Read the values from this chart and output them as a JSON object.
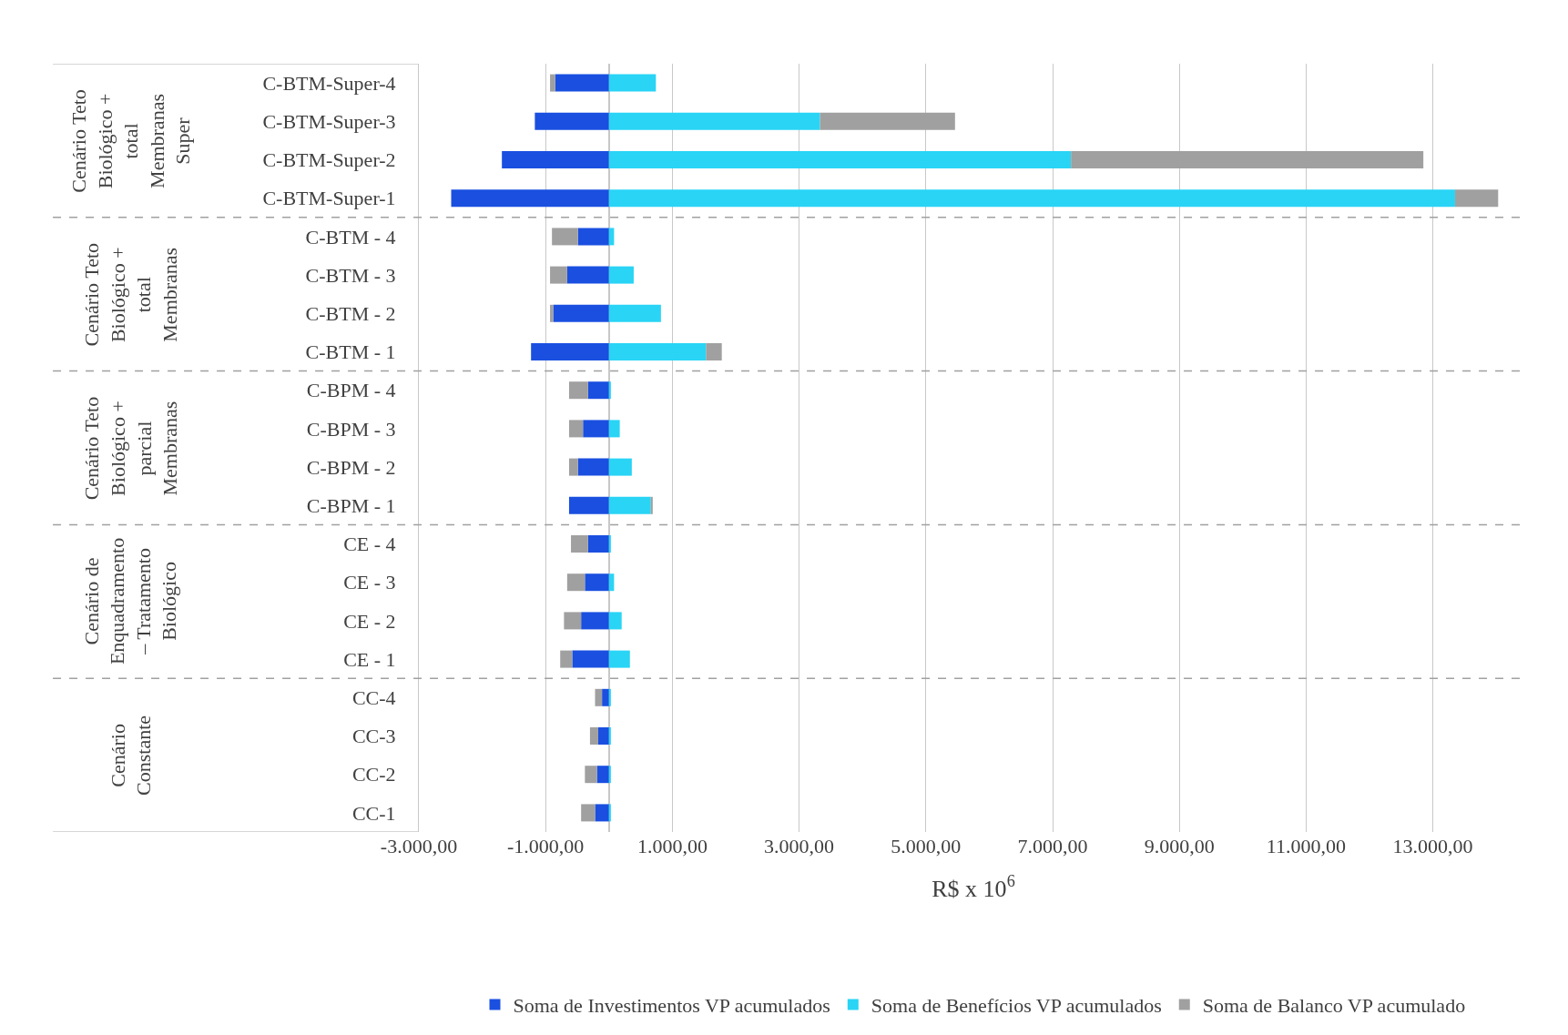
{
  "chart_data": {
    "type": "bar",
    "orientation": "horizontal",
    "stacked": true,
    "xlabel": "R$ x 10$^{6}$",
    "categories": [
      "C-BTM-Super-4",
      "C-BTM-Super-3",
      "C-BTM-Super-2",
      "C-BTM-Super-1",
      "C-BTM - 4",
      "C-BTM - 3",
      "C-BTM - 2",
      "C-BTM - 1",
      "C-BPM - 4",
      "C-BPM - 3",
      "C-BPM - 2",
      "C-BPM - 1",
      "CE - 4",
      "CE - 3",
      "CE - 2",
      "CE - 1",
      "CC-4",
      "CC-3",
      "CC-2",
      "CC-1"
    ],
    "series": [
      {
        "name": "Soma de Investimentos VP acumulados",
        "color": "#1a4fe0",
        "values": [
          -850,
          -1170,
          -1690,
          -2490,
          -490,
          -660,
          -880,
          -1230,
          -330,
          -410,
          -490,
          -630,
          -330,
          -380,
          -440,
          -580,
          -110,
          -170,
          -190,
          -220
        ]
      },
      {
        "name": "Soma de Benefícios VP acumulados",
        "color": "#29d4f5",
        "values": [
          740,
          3330,
          7290,
          13350,
          80,
          390,
          820,
          1530,
          30,
          170,
          360,
          660,
          30,
          80,
          200,
          330,
          30,
          30,
          30,
          30
        ]
      },
      {
        "name": "Soma de Balanco VP acumulado",
        "color": "#a0a0a0",
        "values": [
          -80,
          2130,
          5560,
          680,
          -410,
          -270,
          -50,
          250,
          -300,
          -220,
          -140,
          30,
          -270,
          -280,
          -270,
          -190,
          -110,
          -130,
          -190,
          -220
        ]
      }
    ],
    "xlim": [
      -3000,
      14500
    ],
    "xticks": [
      {
        "value": -3000,
        "label": "-3.000,00"
      },
      {
        "value": -1000,
        "label": "-1.000,00"
      },
      {
        "value": 1000,
        "label": "1.000,00"
      },
      {
        "value": 3000,
        "label": "3.000,00"
      },
      {
        "value": 5000,
        "label": "5.000,00"
      },
      {
        "value": 7000,
        "label": "7.000,00"
      },
      {
        "value": 9000,
        "label": "9.000,00"
      },
      {
        "value": 11000,
        "label": "11.000,00"
      },
      {
        "value": 13000,
        "label": "13.000,00"
      }
    ],
    "annotations": [
      "Cenário Teto Biológico + total Membranas Super",
      "Cenário Teto Biológico + total Membranas",
      "Cenário Teto Biológico + parcial Membranas",
      "Cenário de Enquadramento – Tratamento Biológico",
      "Cenário Constante"
    ],
    "grid": "x",
    "legend": "bottom"
  }
}
